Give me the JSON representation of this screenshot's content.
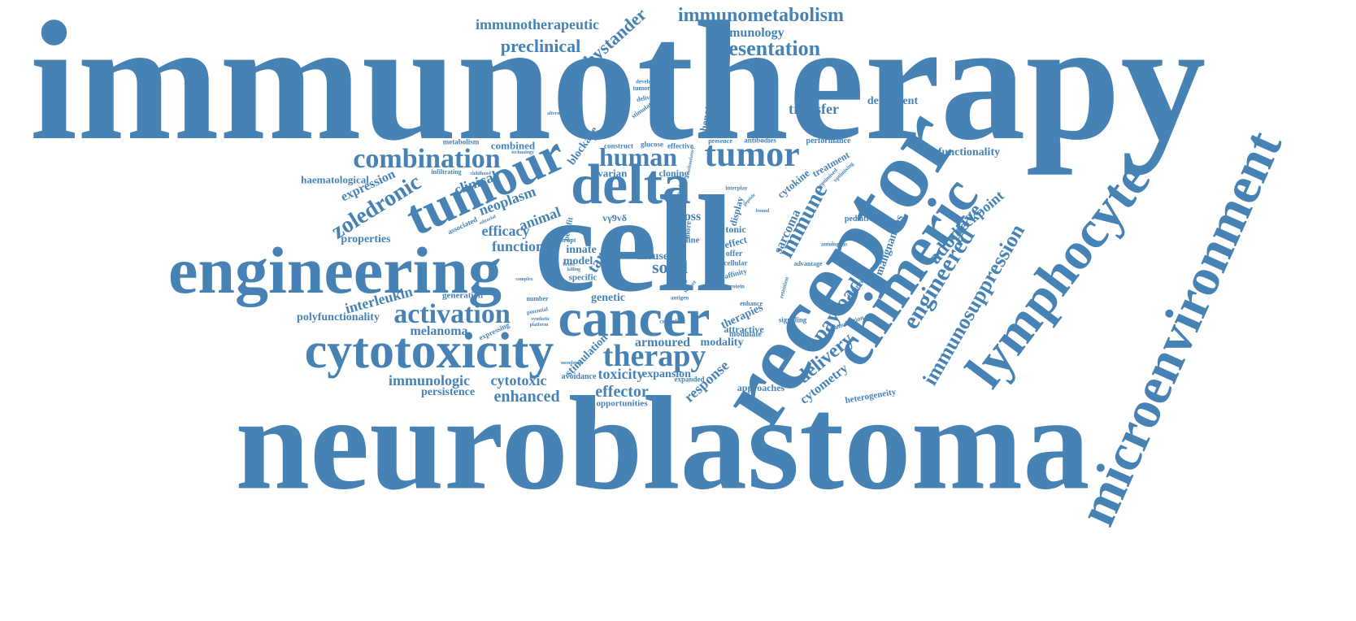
{
  "word_color": "#4682b4",
  "background_color": "#ffffff",
  "words": [
    "immunotherapy",
    "neuroblastoma",
    "cell",
    "receptor",
    "microenvironment",
    "lymphocyte",
    "engineering",
    "cytotoxicity",
    "chimeric",
    "tumour",
    "delta",
    "cancer",
    "tumor",
    "activation",
    "therapy",
    "combination",
    "immunosuppression",
    "immunometabolism",
    "presentation",
    "preclinical",
    "immunotherapeutic",
    "bystander",
    "immunology",
    "engineered",
    "zoledronic",
    "human",
    "adoptive",
    "checkpoint",
    "immune",
    "payload",
    "delivery",
    "transfer",
    "dependent",
    "functionality",
    "expression",
    "haematological",
    "clinical",
    "neoplasm",
    "animal",
    "efficacy",
    "function",
    "properties",
    "interleukin",
    "polyfunctionality",
    "melanoma",
    "immunologic",
    "cytotoxic",
    "persistence",
    "enhanced",
    "effector",
    "opportunities",
    "toxicity",
    "expansion",
    "armoured",
    "modality",
    "response",
    "approaches",
    "cytometry",
    "heterogeneity",
    "solid",
    "mouse",
    "genetic",
    "target",
    "model",
    "innate",
    "specific",
    "cross",
    "blockade",
    "ovarian",
    "cloning",
    "phenotype",
    "combined",
    "metabolism",
    "sarcoma",
    "malignancies",
    "pediatric",
    "cytokine",
    "treatment",
    "performance",
    "antibodies",
    "presence",
    "effective",
    "glucose",
    "construct",
    "tumorigenic",
    "development",
    "delivering",
    "stimulatory",
    "alternative",
    "technology",
    "infiltrating",
    "childhood",
    "associated",
    "editorial",
    "generation",
    "number",
    "potential",
    "expressing",
    "stimulation",
    "avoidance",
    "therapies",
    "attractive",
    "modulate",
    "signaling",
    "transduction",
    "intervention",
    "advantage",
    "autologous",
    "interplay",
    "display",
    "tonic",
    "effect",
    "offer",
    "cellular",
    "affinity",
    "protein",
    "line",
    "more",
    "vγ9vδ",
    "benefit",
    "disrupt",
    "expanded",
    "enhance",
    "retention",
    "optimised",
    "optimising",
    "capable",
    "control",
    "synthetic",
    "platform",
    "membrane",
    "antigen",
    "context",
    "subset",
    "costimulatory",
    "type",
    "bound",
    "peptide",
    "complex",
    "killing",
    "better",
    "lymphoid"
  ]
}
